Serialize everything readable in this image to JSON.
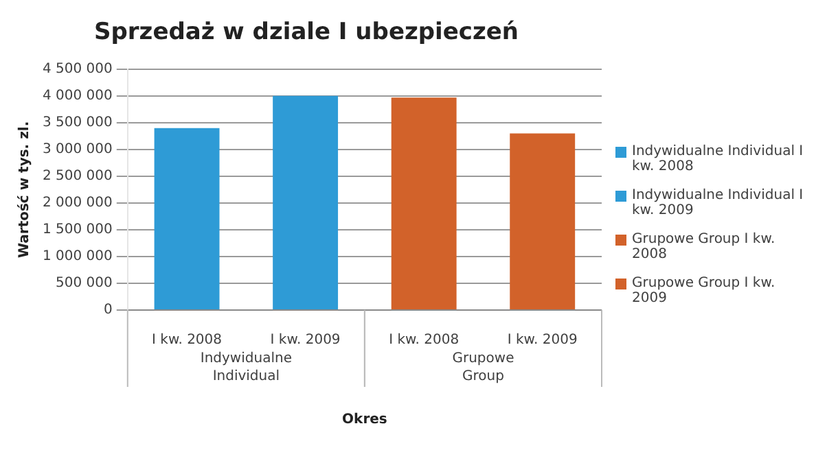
{
  "chart_data": {
    "type": "bar",
    "title": "Sprzedaż w dziale I ubezpieczeń",
    "xlabel": "Okres",
    "ylabel": "Wartość w tys. zl.",
    "categories": [
      "I kw. 2008",
      "I kw. 2009",
      "I kw. 2008",
      "I kw. 2009"
    ],
    "series": [
      {
        "name": "Indywidualne Individual I kw. 2008",
        "color": "#2e9bd6",
        "values": [
          3400000,
          null,
          null,
          null
        ]
      },
      {
        "name": "Indywidualne Individual I kw. 2009",
        "color": "#2e9bd6",
        "values": [
          null,
          4000000,
          null,
          null
        ]
      },
      {
        "name": "Grupowe Group I kw. 2008",
        "color": "#d2622a",
        "values": [
          null,
          null,
          3970000,
          null
        ]
      },
      {
        "name": "Grupowe Group I kw. 2009",
        "color": "#d2622a",
        "values": [
          null,
          null,
          null,
          3300000
        ]
      }
    ],
    "annotations": [
      "Indywidualne Individual",
      "Grupowe Group"
    ],
    "ylim": [
      0,
      4500000
    ],
    "yticks": [
      {
        "value": 0,
        "label": "0"
      },
      {
        "value": 500000,
        "label": "500 000"
      },
      {
        "value": 1000000,
        "label": "1 000 000"
      },
      {
        "value": 1500000,
        "label": "1 500 000"
      },
      {
        "value": 2000000,
        "label": "2 000 000"
      },
      {
        "value": 2500000,
        "label": "2 500 000"
      },
      {
        "value": 3000000,
        "label": "3 000 000"
      },
      {
        "value": 3500000,
        "label": "3 500 000"
      },
      {
        "value": 4000000,
        "label": "4 000 000"
      },
      {
        "value": 4500000,
        "label": "4 500 000"
      }
    ],
    "grid": "y",
    "legend": "right"
  }
}
